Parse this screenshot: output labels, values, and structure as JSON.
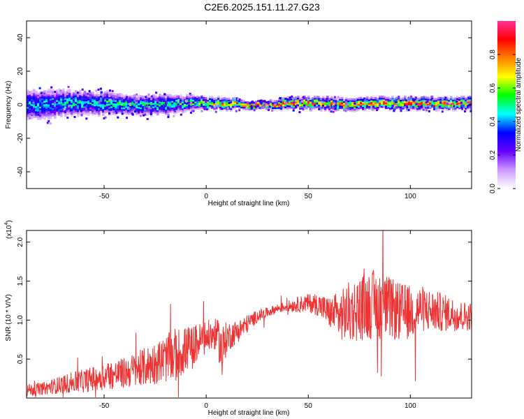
{
  "title": "C2E6.2025.151.11.27.G23",
  "chart_data": [
    {
      "type": "heatmap",
      "xlabel": "Height of straight line (km)",
      "ylabel": "Frequency (Hz)",
      "xlim": [
        -88,
        130
      ],
      "ylim": [
        -50,
        50
      ],
      "xticks": [
        -50,
        0,
        50,
        100
      ],
      "yticks": [
        -40,
        -20,
        0,
        20,
        40
      ],
      "colorbar": {
        "label": "Normalized spectral amplitude",
        "range": [
          0,
          1
        ],
        "ticks": [
          "0.0",
          "0.2",
          "0.4",
          "0.6",
          "0.8"
        ],
        "colormap": [
          "#ffffff",
          "#cc99ff",
          "#6600ff",
          "#0000ff",
          "#00ffff",
          "#00ff00",
          "#ffff00",
          "#ff8000",
          "#ff0000",
          "#ff3399"
        ]
      },
      "ridge": {
        "x": [
          -88,
          -80,
          -70,
          -60,
          -50,
          -40,
          -30,
          -20,
          -10,
          0,
          10,
          20,
          30,
          40,
          50,
          60,
          70,
          80,
          90,
          100,
          110,
          120,
          130
        ],
        "center_hz": [
          0,
          0,
          1,
          1,
          1,
          0,
          0,
          0,
          1,
          1,
          1,
          0,
          0,
          1,
          1,
          1,
          0,
          1,
          1,
          1,
          1,
          1,
          1
        ],
        "halfwidth_hz": [
          8,
          8,
          7,
          6,
          6,
          5,
          5,
          5,
          4,
          3,
          3,
          2,
          2,
          3,
          3,
          3,
          3,
          3,
          3,
          3,
          3,
          3,
          3
        ],
        "peak_amplitude": [
          0.45,
          0.45,
          0.5,
          0.5,
          0.55,
          0.55,
          0.55,
          0.55,
          0.6,
          0.7,
          0.8,
          0.9,
          0.95,
          0.85,
          0.85,
          0.85,
          0.8,
          0.85,
          0.85,
          0.9,
          0.9,
          0.9,
          0.9
        ]
      }
    },
    {
      "type": "line",
      "xlabel": "Height of straight line (km)",
      "ylabel": "SNR (10 * V/V)",
      "y_multiplier": "(x10",
      "y_multiplier_exp": "4",
      "y_multiplier_close": ")",
      "xlim": [
        -88,
        130
      ],
      "ylim": [
        0,
        2.15
      ],
      "xticks": [
        -50,
        0,
        50,
        100
      ],
      "yticks": [
        0.5,
        1.0,
        1.5,
        2.0
      ],
      "ytick_labels": [
        "0.5",
        "1.0",
        "1.5",
        "2.0"
      ],
      "color": "#ee3333",
      "series": [
        {
          "x": [
            -88,
            -80,
            -70,
            -60,
            -50,
            -40,
            -30,
            -20,
            -15,
            -10,
            -5,
            0,
            5,
            8,
            10,
            15,
            20,
            25,
            30,
            35,
            40,
            45,
            50,
            55,
            60,
            65,
            70,
            75,
            80,
            85,
            90,
            95,
            100,
            105,
            110,
            115,
            120,
            125,
            130
          ],
          "values": [
            0.1,
            0.12,
            0.18,
            0.22,
            0.28,
            0.32,
            0.4,
            0.5,
            0.55,
            0.62,
            0.7,
            0.78,
            0.82,
            0.6,
            0.78,
            0.85,
            0.95,
            1.05,
            1.1,
            1.15,
            1.18,
            1.2,
            1.22,
            1.2,
            1.1,
            1.05,
            1.1,
            1.15,
            1.2,
            1.2,
            1.15,
            1.1,
            1.1,
            1.15,
            1.12,
            1.1,
            1.08,
            1.05,
            1.05
          ],
          "noise_amplitude": [
            0.08,
            0.08,
            0.12,
            0.15,
            0.18,
            0.2,
            0.25,
            0.3,
            0.35,
            0.3,
            0.25,
            0.22,
            0.2,
            0.35,
            0.2,
            0.15,
            0.12,
            0.08,
            0.06,
            0.06,
            0.07,
            0.1,
            0.12,
            0.15,
            0.2,
            0.3,
            0.4,
            0.42,
            0.45,
            0.45,
            0.4,
            0.38,
            0.35,
            0.3,
            0.28,
            0.25,
            0.22,
            0.2,
            0.18
          ]
        }
      ]
    }
  ]
}
